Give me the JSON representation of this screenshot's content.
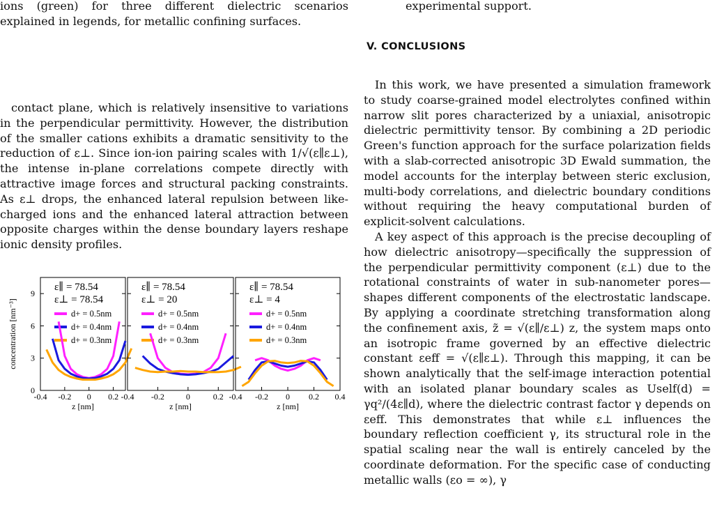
{
  "left": {
    "caption_tail": "ions (green) for three different dielectric scenarios explained in legends, for metallic confining surfaces.",
    "body": "contact plane, which is relatively insensitive to variations in the perpendicular permittivity. However, the distribution of the smaller cations exhibits a dramatic sensitivity to the reduction of ε⊥. Since ion-ion pairing scales with 1/√(ε∥ε⊥), the intense in-plane correlations compete directly with attractive image forces and structural packing constraints. As ε⊥ drops, the enhanced lateral repulsion between like-charged ions and the enhanced lateral attraction between opposite charges within the dense boundary layers reshape ionic density profiles."
  },
  "right": {
    "top_tail": "experimental support.",
    "section_title": "V.   CONCLUSIONS",
    "para1": "In this work, we have presented a simulation framework to study coarse-grained model electrolytes confined within narrow slit pores characterized by a uniaxial, anisotropic dielectric permittivity tensor. By combining a 2D periodic Green's function approach for the surface polarization fields with a slab-corrected anisotropic 3D Ewald summation, the model accounts for the interplay between steric exclusion, multi-body correlations, and dielectric boundary conditions without requiring the heavy computational burden of explicit-solvent calculations.",
    "para2": "A key aspect of this approach is the precise decoupling of how dielectric anisotropy—specifically the suppression of the perpendicular permittivity component (ε⊥) due to the rotational constraints of water in sub-nanometer pores—shapes different components of the electrostatic landscape. By applying a coordinate stretching transformation along the confinement axis, z̃ = √(ε∥/ε⊥) z, the system maps onto an isotropic frame governed by an effective dielectric constant εeff = √(ε∥ε⊥). Through this mapping, it can be shown analytically that the self-image interaction potential with an isolated planar boundary scales as Uself(d) = γq²/(4ε∥d), where the dielectric contrast factor γ depends on εeff. This demonstrates that while ε⊥ influences the boundary reflection coefficient γ, its structural role in the spatial scaling near the wall is entirely canceled by the coordinate deformation. For the specific case of conducting metallic walls (εo = ∞), γ"
  },
  "figure": {
    "ylabel": "concentration [nm⁻³]",
    "xlabel": "z [nm]",
    "yticks": [
      "0",
      "3",
      "6",
      "9"
    ],
    "xticks": [
      "-0.4",
      "-0.2",
      "0",
      "0.2",
      "0.4"
    ],
    "xticks_panel": [
      "-0.2",
      "0",
      "0.2"
    ],
    "panels": [
      {
        "eps_par": "ε∥ = 78.54",
        "eps_perp": "ε⊥ = 78.54"
      },
      {
        "eps_par": "ε∥ = 78.54",
        "eps_perp": "ε⊥ = 20"
      },
      {
        "eps_par": "ε∥ = 78.54",
        "eps_perp": "ε⊥ = 4"
      }
    ],
    "legend": [
      {
        "label": "d+ = 0.5nm",
        "color": "#ff20ff"
      },
      {
        "label": "d+ = 0.4nm",
        "color": "#1a1adf"
      },
      {
        "label": "d+ = 0.3nm",
        "color": "#ffa500"
      }
    ]
  },
  "chart_data": {
    "type": "line",
    "xlabel": "z [nm]",
    "ylabel": "concentration [nm⁻³]",
    "ylim": [
      0,
      10.5
    ],
    "panels": [
      {
        "title": "ε∥ = 78.54, ε⊥ = 78.54",
        "xlim": [
          -0.4,
          0.3
        ],
        "series": [
          {
            "name": "d+ = 0.5nm",
            "x": [
              -0.25,
              -0.2,
              -0.15,
              -0.1,
              -0.05,
              0,
              0.05,
              0.1,
              0.15,
              0.2,
              0.25
            ],
            "y": [
              6.4,
              3.2,
              2.0,
              1.5,
              1.25,
              1.15,
              1.25,
              1.5,
              2.0,
              3.2,
              6.4
            ]
          },
          {
            "name": "d+ = 0.4nm",
            "x": [
              -0.3,
              -0.25,
              -0.2,
              -0.15,
              -0.1,
              -0.05,
              0,
              0.05,
              0.1,
              0.15,
              0.2,
              0.25,
              0.3
            ],
            "y": [
              4.8,
              2.8,
              2.0,
              1.55,
              1.3,
              1.15,
              1.1,
              1.15,
              1.3,
              1.55,
              2.0,
              2.8,
              4.6
            ]
          },
          {
            "name": "d+ = 0.3nm",
            "x": [
              -0.35,
              -0.3,
              -0.25,
              -0.2,
              -0.15,
              -0.1,
              -0.05,
              0,
              0.05,
              0.1,
              0.15,
              0.2,
              0.25,
              0.3,
              0.35
            ],
            "y": [
              3.8,
              2.6,
              1.9,
              1.5,
              1.25,
              1.1,
              1.0,
              1.0,
              1.0,
              1.1,
              1.25,
              1.5,
              1.9,
              2.6,
              3.9
            ]
          }
        ]
      },
      {
        "title": "ε∥ = 78.54, ε⊥ = 20",
        "xlim": [
          -0.4,
          0.3
        ],
        "series": [
          {
            "name": "d+ = 0.5nm",
            "x": [
              -0.25,
              -0.2,
              -0.15,
              -0.1,
              -0.05,
              0,
              0.05,
              0.1,
              0.15,
              0.2,
              0.25
            ],
            "y": [
              5.3,
              3.0,
              2.1,
              1.7,
              1.55,
              1.5,
              1.55,
              1.7,
              2.1,
              3.0,
              5.3
            ]
          },
          {
            "name": "d+ = 0.4nm",
            "x": [
              -0.3,
              -0.25,
              -0.2,
              -0.15,
              -0.1,
              -0.05,
              0,
              0.05,
              0.1,
              0.15,
              0.2,
              0.25,
              0.3
            ],
            "y": [
              3.2,
              2.5,
              2.0,
              1.75,
              1.6,
              1.5,
              1.45,
              1.5,
              1.6,
              1.75,
              2.0,
              2.6,
              3.2
            ]
          },
          {
            "name": "d+ = 0.3nm",
            "x": [
              -0.35,
              -0.3,
              -0.25,
              -0.2,
              -0.15,
              -0.1,
              -0.05,
              0,
              0.05,
              0.1,
              0.15,
              0.2,
              0.25,
              0.3,
              0.35
            ],
            "y": [
              2.1,
              1.9,
              1.75,
              1.7,
              1.75,
              1.75,
              1.8,
              1.75,
              1.75,
              1.7,
              1.7,
              1.7,
              1.75,
              1.9,
              2.2
            ]
          }
        ]
      },
      {
        "title": "ε∥ = 78.54, ε⊥ = 4",
        "xlim": [
          -0.4,
          0.4
        ],
        "series": [
          {
            "name": "d+ = 0.5nm",
            "x": [
              -0.25,
              -0.2,
              -0.15,
              -0.1,
              -0.05,
              0,
              0.05,
              0.1,
              0.15,
              0.2,
              0.25
            ],
            "y": [
              2.8,
              3.0,
              2.8,
              2.3,
              2.0,
              1.85,
              2.0,
              2.3,
              2.8,
              3.0,
              2.8
            ]
          },
          {
            "name": "d+ = 0.4nm",
            "x": [
              -0.3,
              -0.25,
              -0.2,
              -0.15,
              -0.1,
              -0.05,
              0,
              0.05,
              0.1,
              0.15,
              0.2,
              0.25,
              0.3
            ],
            "y": [
              1.0,
              1.9,
              2.6,
              2.7,
              2.5,
              2.3,
              2.2,
              2.3,
              2.5,
              2.7,
              2.6,
              1.9,
              1.0
            ]
          },
          {
            "name": "d+ = 0.3nm",
            "x": [
              -0.35,
              -0.3,
              -0.25,
              -0.2,
              -0.15,
              -0.1,
              -0.05,
              0,
              0.05,
              0.1,
              0.15,
              0.2,
              0.25,
              0.3,
              0.35
            ],
            "y": [
              0.4,
              0.8,
              1.6,
              2.3,
              2.7,
              2.75,
              2.6,
              2.55,
              2.6,
              2.75,
              2.7,
              2.3,
              1.6,
              0.8,
              0.4
            ]
          }
        ]
      }
    ]
  }
}
